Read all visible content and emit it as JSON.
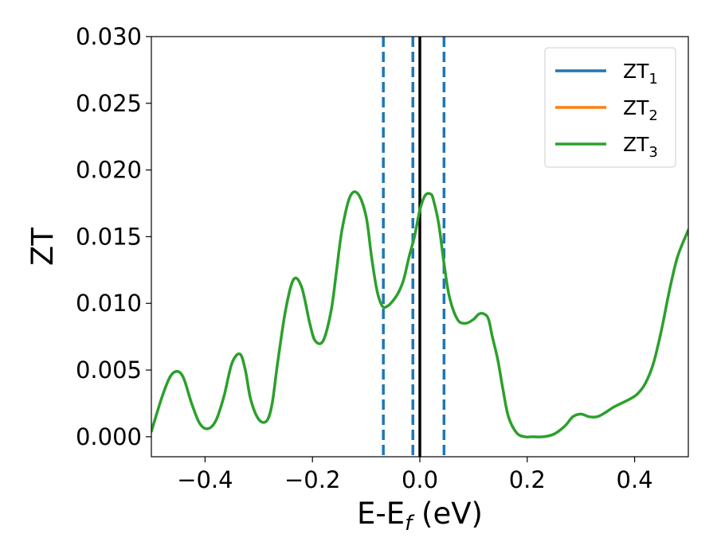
{
  "chart_data": {
    "type": "line",
    "xlabel": "E-E",
    "xlabel_sub": "f",
    "xlabel_unit": " (eV)",
    "ylabel": "ZT",
    "xlim": [
      -0.5,
      0.5
    ],
    "ylim": [
      -0.0015,
      0.03
    ],
    "xticks": [
      -0.4,
      -0.2,
      0.0,
      0.2,
      0.4
    ],
    "xtick_labels": [
      "−0.4",
      "−0.2",
      "0.0",
      "0.2",
      "0.4"
    ],
    "yticks": [
      0.0,
      0.005,
      0.01,
      0.015,
      0.02,
      0.025,
      0.03
    ],
    "ytick_labels": [
      "0.000",
      "0.005",
      "0.010",
      "0.015",
      "0.020",
      "0.025",
      "0.030"
    ],
    "grid": false,
    "legend": {
      "placement": "top-right",
      "entries": [
        {
          "base": "ZT",
          "sub": "1",
          "color": "#1f77b4"
        },
        {
          "base": "ZT",
          "sub": "2",
          "color": "#ff7f0e"
        },
        {
          "base": "ZT",
          "sub": "3",
          "color": "#2ca02c"
        }
      ]
    },
    "vlines": [
      {
        "x": -0.068,
        "style": "dashed",
        "color": "#1f77b4"
      },
      {
        "x": -0.013,
        "style": "dashed",
        "color": "#1f77b4"
      },
      {
        "x": 0.045,
        "style": "dashed",
        "color": "#1f77b4"
      },
      {
        "x": 0.0,
        "style": "solid",
        "color": "#000000"
      }
    ],
    "series": [
      {
        "name": "ZT_3",
        "color": "#2ca02c",
        "x": [
          -0.5,
          -0.48,
          -0.465,
          -0.452,
          -0.44,
          -0.425,
          -0.41,
          -0.395,
          -0.38,
          -0.365,
          -0.35,
          -0.335,
          -0.325,
          -0.315,
          -0.3,
          -0.285,
          -0.275,
          -0.265,
          -0.25,
          -0.235,
          -0.22,
          -0.205,
          -0.195,
          -0.18,
          -0.165,
          -0.155,
          -0.145,
          -0.13,
          -0.115,
          -0.1,
          -0.09,
          -0.08,
          -0.07,
          -0.06,
          -0.05,
          -0.04,
          -0.03,
          -0.02,
          -0.01,
          0.0,
          0.01,
          0.02,
          0.025,
          0.035,
          0.045,
          0.055,
          0.07,
          0.085,
          0.1,
          0.11,
          0.12,
          0.128,
          0.135,
          0.145,
          0.155,
          0.165,
          0.18,
          0.195,
          0.21,
          0.23,
          0.25,
          0.27,
          0.285,
          0.3,
          0.315,
          0.33,
          0.345,
          0.36,
          0.375,
          0.39,
          0.405,
          0.42,
          0.435,
          0.45,
          0.465,
          0.48,
          0.5
        ],
        "y": [
          0.0004,
          0.003,
          0.0045,
          0.0049,
          0.0044,
          0.0025,
          0.001,
          0.0006,
          0.0012,
          0.003,
          0.0055,
          0.0062,
          0.005,
          0.0028,
          0.0013,
          0.0012,
          0.0025,
          0.0055,
          0.0095,
          0.0118,
          0.0112,
          0.0085,
          0.0072,
          0.0072,
          0.0095,
          0.0125,
          0.0155,
          0.018,
          0.0182,
          0.0165,
          0.0135,
          0.011,
          0.0098,
          0.0098,
          0.0102,
          0.0108,
          0.0118,
          0.0135,
          0.015,
          0.017,
          0.0181,
          0.0182,
          0.0178,
          0.016,
          0.013,
          0.0105,
          0.0088,
          0.0085,
          0.0088,
          0.0092,
          0.0092,
          0.0088,
          0.0075,
          0.0058,
          0.0035,
          0.0015,
          0.0003,
          0.0,
          0.0,
          0.0,
          0.0002,
          0.0008,
          0.0015,
          0.0017,
          0.0015,
          0.0015,
          0.0018,
          0.0022,
          0.0025,
          0.0028,
          0.0032,
          0.004,
          0.0055,
          0.008,
          0.011,
          0.0135,
          0.0155
        ]
      }
    ]
  }
}
